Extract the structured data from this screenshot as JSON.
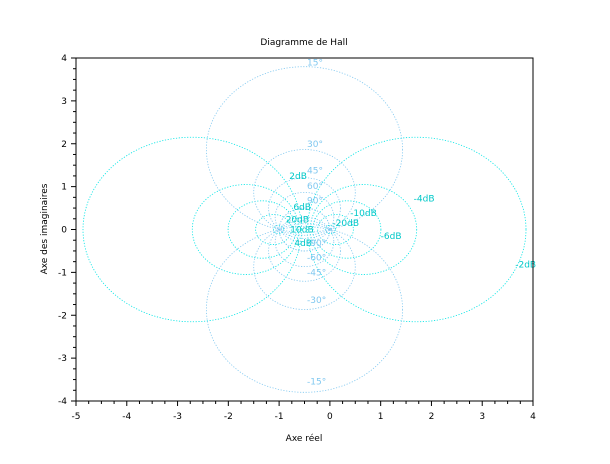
{
  "chart_data": {
    "type": "line",
    "title": "Diagramme de Hall",
    "xlabel": "Axe réel",
    "ylabel": "Axe des imaginaires",
    "xlim": [
      -5,
      4
    ],
    "ylim": [
      -4,
      4
    ],
    "xticks": [
      -5,
      -4,
      -3,
      -2,
      -1,
      0,
      1,
      2,
      3,
      4
    ],
    "yticks": [
      -4,
      -3,
      -2,
      -1,
      0,
      1,
      2,
      3,
      4
    ],
    "xtick_labels": [
      "-5",
      "-4",
      "-3",
      "-2",
      "-1",
      "0",
      "1",
      "2",
      "3",
      "4"
    ],
    "ytick_labels": [
      "-4",
      "-3",
      "-2",
      "-1",
      "0",
      "1",
      "2",
      "3",
      "4"
    ],
    "grid": false,
    "colors": {
      "gain_curves": "#00e5e5",
      "phase_curves": "#80c8f0",
      "gain_label": "#00c8c8",
      "phase_label": "#80c8f0",
      "axes": "#000000",
      "background": "#ffffff"
    },
    "gain_curves_dB": [
      -20,
      -10,
      -6,
      -4,
      -2,
      2,
      4,
      6,
      10,
      20
    ],
    "phase_curves_deg": [
      -90,
      -60,
      -45,
      -30,
      -15,
      15,
      30,
      45,
      60,
      90
    ],
    "gain_labels": [
      {
        "text": "-20dB",
        "x": 0.05,
        "y": 0.15
      },
      {
        "text": "-10dB",
        "x": 0.4,
        "y": 0.38
      },
      {
        "text": "-6dB",
        "x": 1.0,
        "y": -0.15
      },
      {
        "text": "-4dB",
        "x": 1.65,
        "y": 0.72
      },
      {
        "text": "-2dB",
        "x": 3.65,
        "y": -0.82
      },
      {
        "text": "2dB",
        "x": -0.8,
        "y": 1.25
      },
      {
        "text": "4dB",
        "x": -0.7,
        "y": -0.32
      },
      {
        "text": "6dB",
        "x": -0.72,
        "y": 0.52
      },
      {
        "text": "10dB",
        "x": -0.78,
        "y": 0.0
      },
      {
        "text": "20dB",
        "x": -0.87,
        "y": 0.23
      }
    ],
    "phase_labels": [
      {
        "text": "15°",
        "x": -0.45,
        "y": 3.9
      },
      {
        "text": "30°",
        "x": -0.45,
        "y": 2.0
      },
      {
        "text": "45°",
        "x": -0.45,
        "y": 1.38
      },
      {
        "text": "60°",
        "x": -0.45,
        "y": 1.02
      },
      {
        "text": "90°",
        "x": -0.45,
        "y": 0.68
      },
      {
        "text": "-90°",
        "x": -0.45,
        "y": -0.32
      },
      {
        "text": "-60°",
        "x": -0.45,
        "y": -0.65
      },
      {
        "text": "-45°",
        "x": -0.45,
        "y": -1.0
      },
      {
        "text": "-30°",
        "x": -0.45,
        "y": -1.65
      },
      {
        "text": "-15°",
        "x": -0.45,
        "y": -3.55
      }
    ]
  }
}
